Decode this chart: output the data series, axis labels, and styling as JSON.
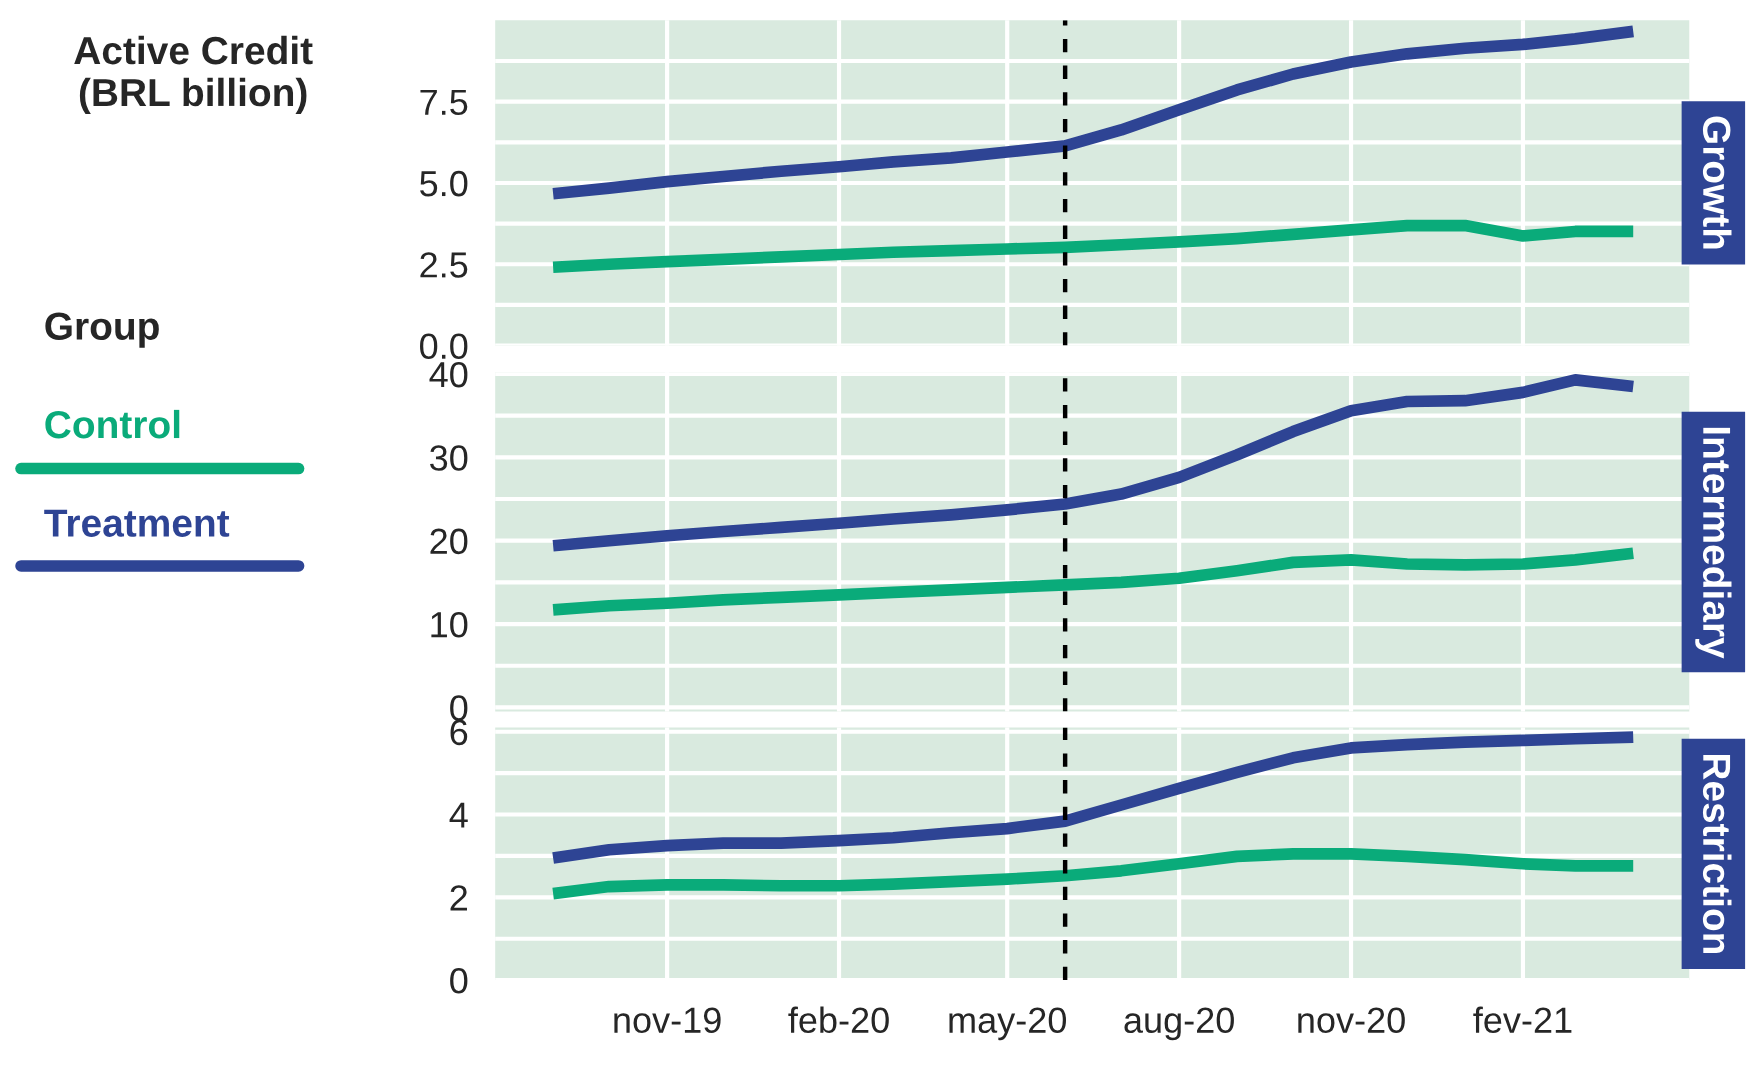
{
  "chart_data": [
    {
      "type": "line",
      "title": "Growth",
      "ylabel": "Active Credit\n(BRL billion)",
      "legend_title": "Group",
      "legend": "left",
      "grid": true,
      "tick_labels": "y",
      "line_style": "solid",
      "marker": "none",
      "x": [
        "2019-09",
        "2019-10",
        "2019-11",
        "2019-12",
        "2020-01",
        "2020-02",
        "2020-03",
        "2020-04",
        "2020-05",
        "2020-06",
        "2020-07",
        "2020-08",
        "2020-09",
        "2020-10",
        "2020-11",
        "2020-12",
        "2021-01",
        "2021-02",
        "2021-03",
        "2021-04"
      ],
      "xlim": [
        "2019-08",
        "2021-05"
      ],
      "xticks": [
        {
          "value": "2019-11",
          "label": null
        },
        {
          "value": "2020-02",
          "label": null
        },
        {
          "value": "2020-05",
          "label": null
        },
        {
          "value": "2020-08",
          "label": null
        },
        {
          "value": "2020-11",
          "label": null
        },
        {
          "value": "2021-02",
          "label": null
        }
      ],
      "ylim": [
        0,
        10
      ],
      "yticks": [
        {
          "value": 0,
          "label": "0.0"
        },
        {
          "value": 2.5,
          "label": "2.5"
        },
        {
          "value": 5,
          "label": "5.0"
        },
        {
          "value": 7.5,
          "label": "7.5"
        }
      ],
      "ref_lines": [
        {
          "axis": "x",
          "value": "2020-06",
          "color": "#000000",
          "line_style": "dashed"
        }
      ],
      "series": [
        {
          "name": "Control",
          "color": "#0aab7a",
          "values": [
            2.41,
            2.5,
            2.58,
            2.65,
            2.73,
            2.8,
            2.87,
            2.92,
            2.97,
            3.02,
            3.1,
            3.19,
            3.29,
            3.42,
            3.56,
            3.69,
            3.69,
            3.37,
            3.51,
            3.51
          ]
        },
        {
          "name": "Treatment",
          "color": "#2e4494",
          "values": [
            4.67,
            4.84,
            5.04,
            5.2,
            5.36,
            5.5,
            5.65,
            5.77,
            5.95,
            6.14,
            6.63,
            7.25,
            7.86,
            8.35,
            8.72,
            8.97,
            9.14,
            9.26,
            9.43,
            9.66
          ]
        }
      ]
    },
    {
      "type": "line",
      "title": "Intermediary",
      "grid": true,
      "tick_labels": "y",
      "line_style": "solid",
      "marker": "none",
      "x": [
        "2019-09",
        "2019-10",
        "2019-11",
        "2019-12",
        "2020-01",
        "2020-02",
        "2020-03",
        "2020-04",
        "2020-05",
        "2020-06",
        "2020-07",
        "2020-08",
        "2020-09",
        "2020-10",
        "2020-11",
        "2020-12",
        "2021-01",
        "2021-02",
        "2021-03",
        "2021-04"
      ],
      "xlim": [
        "2019-08",
        "2021-05"
      ],
      "xticks": [
        {
          "value": "2019-11",
          "label": null
        },
        {
          "value": "2020-02",
          "label": null
        },
        {
          "value": "2020-05",
          "label": null
        },
        {
          "value": "2020-08",
          "label": null
        },
        {
          "value": "2020-11",
          "label": null
        },
        {
          "value": "2021-02",
          "label": null
        }
      ],
      "ylim": [
        -0.5,
        40.2
      ],
      "yticks": [
        0,
        10,
        20,
        30,
        40
      ],
      "ref_lines": [
        {
          "axis": "x",
          "value": "2020-06",
          "color": "#000000",
          "line_style": "dashed"
        }
      ],
      "series": [
        {
          "color": "#0aab7a",
          "values": [
            11.7,
            12.2,
            12.5,
            12.9,
            13.2,
            13.5,
            13.8,
            14.1,
            14.4,
            14.7,
            15.0,
            15.5,
            16.4,
            17.4,
            17.7,
            17.2,
            17.1,
            17.2,
            17.7,
            18.5
          ]
        },
        {
          "color": "#2e4494",
          "values": [
            19.4,
            20.0,
            20.6,
            21.1,
            21.6,
            22.1,
            22.6,
            23.1,
            23.7,
            24.4,
            25.6,
            27.6,
            30.3,
            33.1,
            35.6,
            36.7,
            36.8,
            37.8,
            39.3,
            38.5
          ]
        }
      ]
    },
    {
      "type": "line",
      "title": "Restriction",
      "grid": true,
      "line_style": "solid",
      "marker": "none",
      "x": [
        "2019-09",
        "2019-10",
        "2019-11",
        "2019-12",
        "2020-01",
        "2020-02",
        "2020-03",
        "2020-04",
        "2020-05",
        "2020-06",
        "2020-07",
        "2020-08",
        "2020-09",
        "2020-10",
        "2020-11",
        "2020-12",
        "2021-01",
        "2021-02",
        "2021-03",
        "2021-04"
      ],
      "xlim": [
        "2019-08",
        "2021-05"
      ],
      "xticks": [
        {
          "value": "2019-11",
          "label": "nov-19"
        },
        {
          "value": "2020-02",
          "label": "feb-20"
        },
        {
          "value": "2020-05",
          "label": "may-20"
        },
        {
          "value": "2020-08",
          "label": "aug-20"
        },
        {
          "value": "2020-11",
          "label": "nov-20"
        },
        {
          "value": "2021-02",
          "label": "fev-21"
        }
      ],
      "ylim": [
        0,
        6.1
      ],
      "yticks": [
        0,
        2,
        4,
        6
      ],
      "ref_lines": [
        {
          "axis": "x",
          "value": "2020-06",
          "color": "#000000",
          "line_style": "dashed"
        }
      ],
      "series": [
        {
          "color": "#0aab7a",
          "values": [
            2.09,
            2.26,
            2.3,
            2.3,
            2.28,
            2.28,
            2.32,
            2.38,
            2.44,
            2.52,
            2.64,
            2.81,
            2.99,
            3.05,
            3.05,
            2.99,
            2.91,
            2.81,
            2.76,
            2.76
          ]
        },
        {
          "color": "#2e4494",
          "values": [
            2.95,
            3.15,
            3.25,
            3.31,
            3.31,
            3.37,
            3.44,
            3.56,
            3.66,
            3.84,
            4.23,
            4.63,
            5.02,
            5.37,
            5.61,
            5.69,
            5.75,
            5.79,
            5.83,
            5.87
          ]
        }
      ]
    }
  ]
}
